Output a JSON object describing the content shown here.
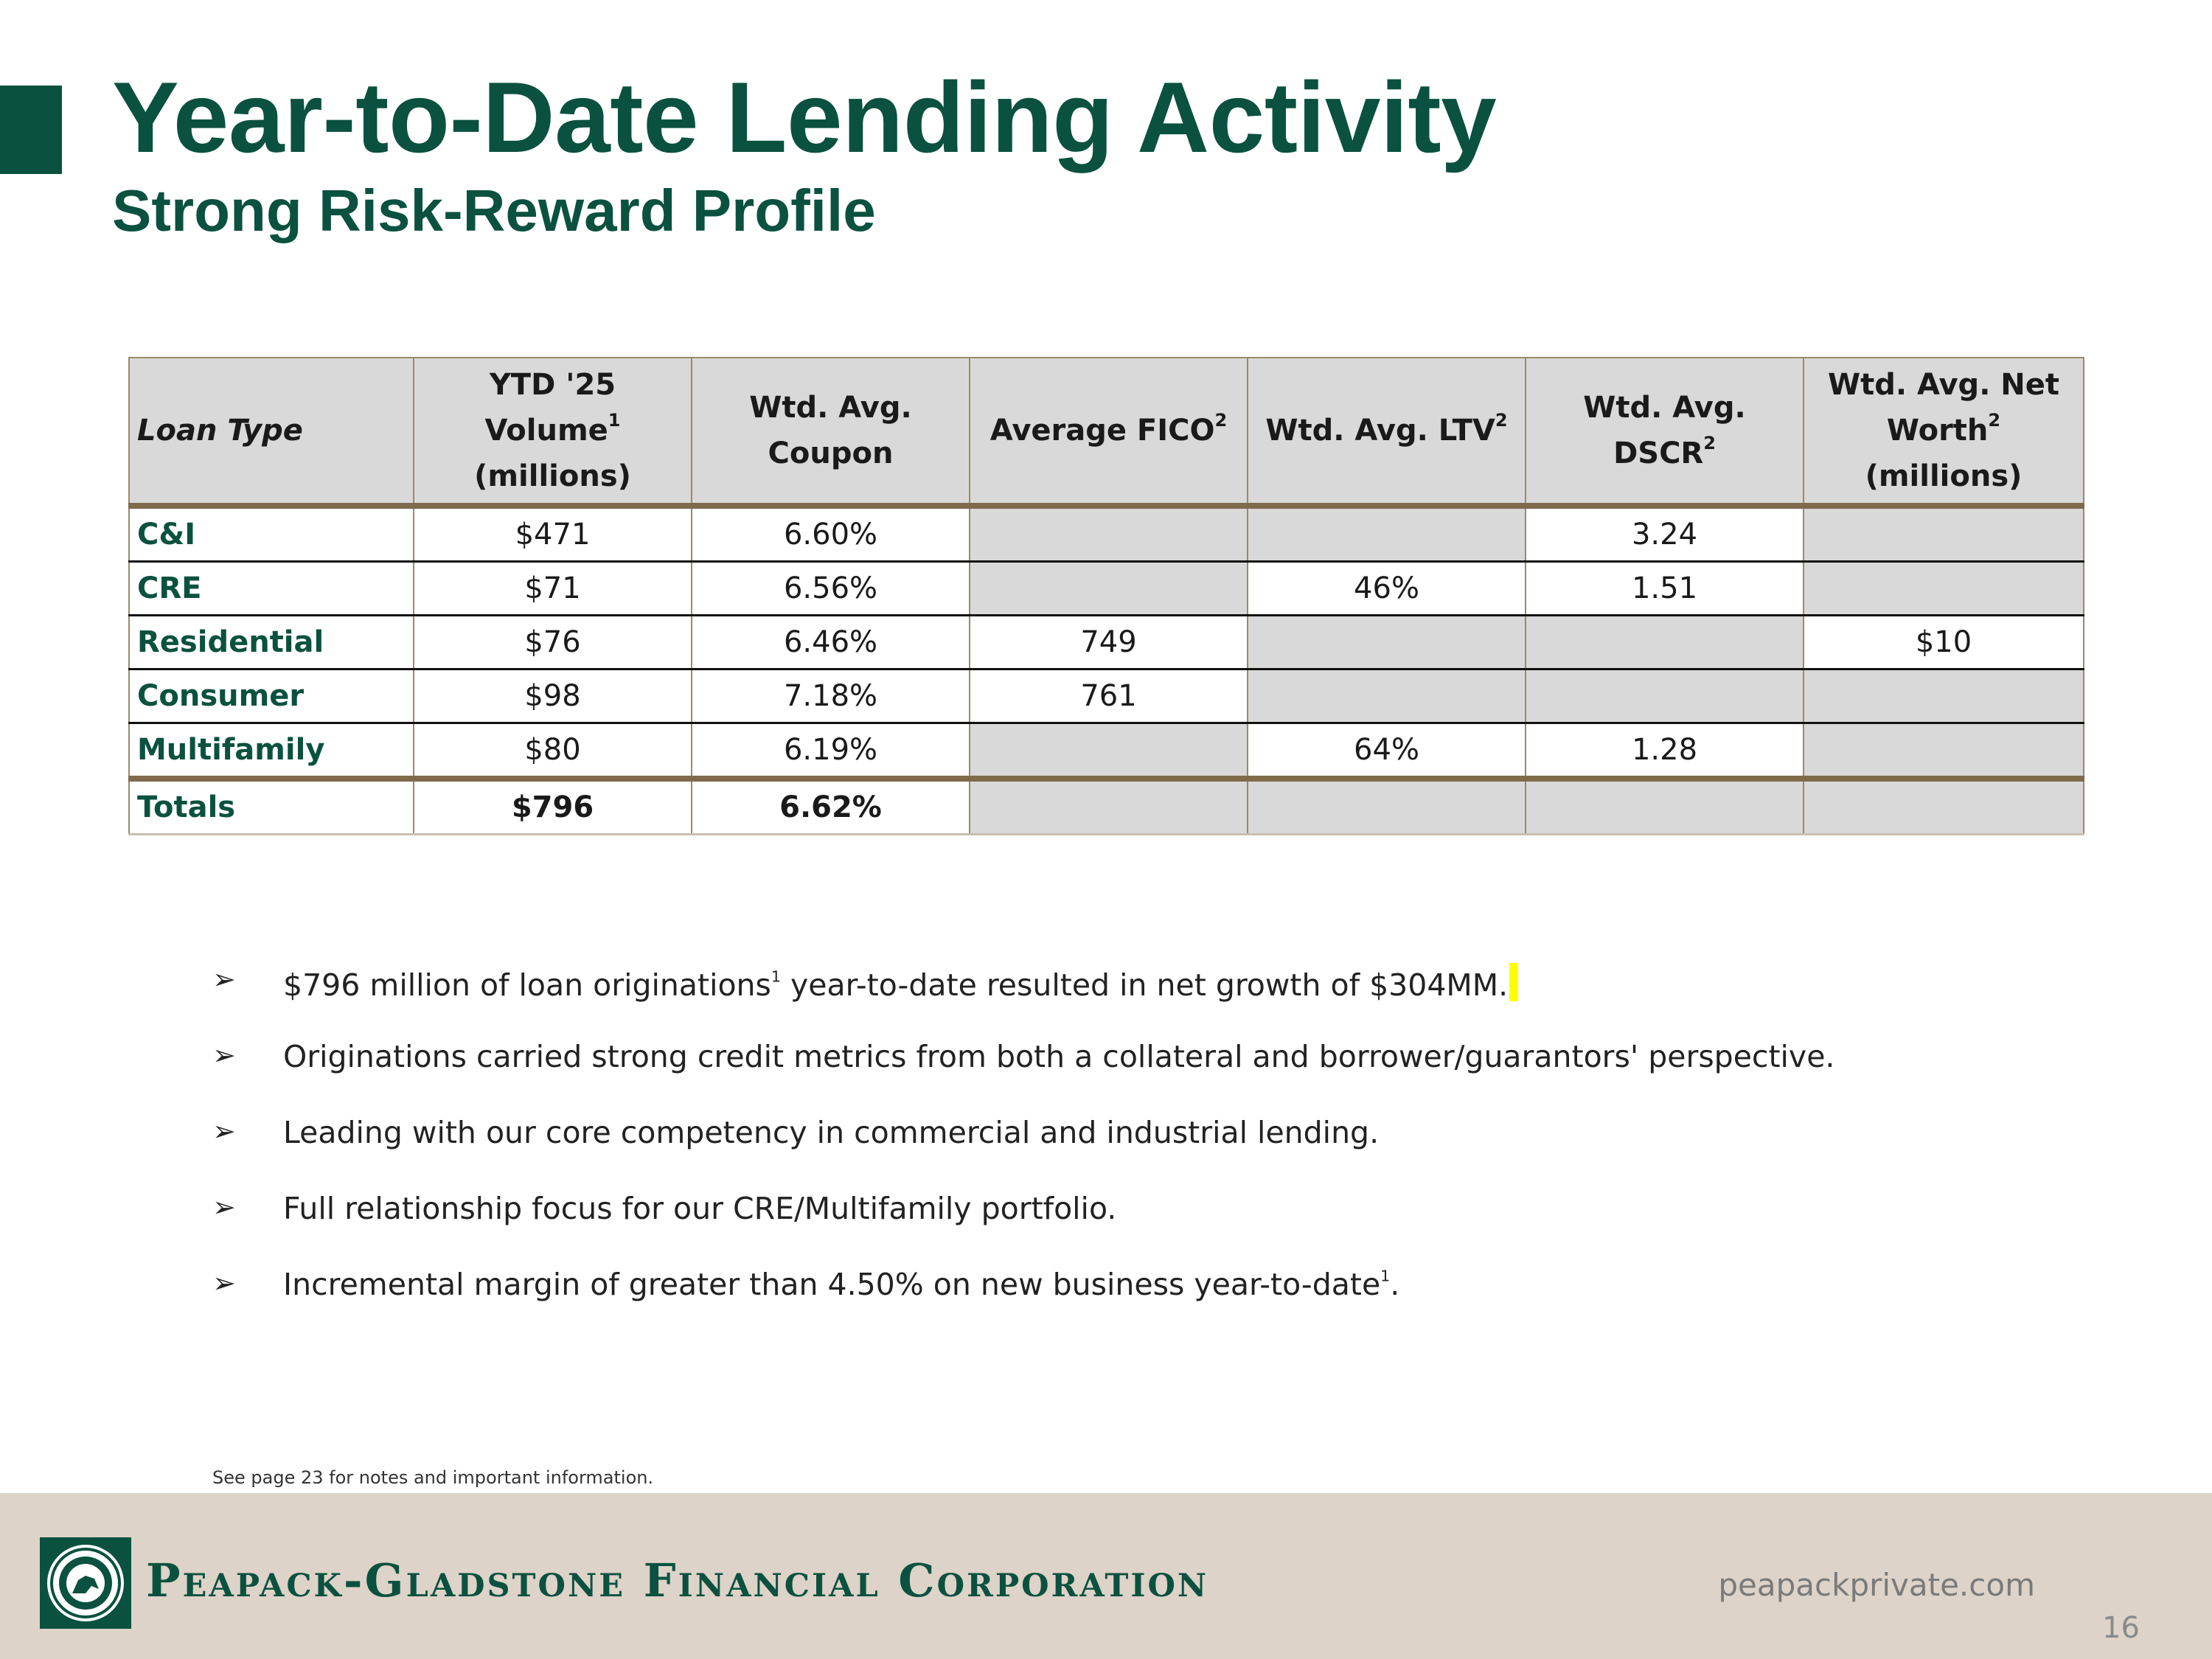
{
  "header": {
    "title": "Year-to-Date Lending Activity",
    "subtitle": "Strong Risk-Reward Profile"
  },
  "table": {
    "columns": [
      {
        "label": "Loan Type"
      },
      {
        "label_a": "YTD '25 Volume",
        "sup": "1",
        "label_b": "(millions)"
      },
      {
        "label_a": "Wtd. Avg.",
        "label_b": "Coupon"
      },
      {
        "label": "Average FICO",
        "sup": "2"
      },
      {
        "label": "Wtd. Avg. LTV",
        "sup": "2"
      },
      {
        "label": "Wtd. Avg. DSCR",
        "sup": "2"
      },
      {
        "label_a": "Wtd. Avg. Net",
        "label_b_1": "Worth",
        "sup": "2",
        "label_b_2": " (millions)"
      }
    ],
    "rows": [
      {
        "loan_type": "C&I",
        "volume": "$471",
        "coupon": "6.60%",
        "fico": "",
        "ltv": "",
        "dscr": "3.24",
        "net_worth": ""
      },
      {
        "loan_type": "CRE",
        "volume": "$71",
        "coupon": "6.56%",
        "fico": "",
        "ltv": "46%",
        "dscr": "1.51",
        "net_worth": ""
      },
      {
        "loan_type": "Residential",
        "volume": "$76",
        "coupon": "6.46%",
        "fico": "749",
        "ltv": "",
        "dscr": "",
        "net_worth": "$10"
      },
      {
        "loan_type": "Consumer",
        "volume": "$98",
        "coupon": "7.18%",
        "fico": "761",
        "ltv": "",
        "dscr": "",
        "net_worth": ""
      },
      {
        "loan_type": "Multifamily",
        "volume": "$80",
        "coupon": "6.19%",
        "fico": "",
        "ltv": "64%",
        "dscr": "1.28",
        "net_worth": ""
      }
    ],
    "totals": {
      "label": "Totals",
      "volume": "$796",
      "coupon": "6.62%"
    }
  },
  "bullets": {
    "marker": "➢",
    "b1_a": "$796 million of loan originations",
    "b1_sup": "1",
    "b1_b": " year-to-date resulted in net growth of $304MM.",
    "b2": "Originations carried strong credit metrics from both a collateral and borrower/guarantors' perspective.",
    "b3": "Leading with our core competency in commercial and industrial lending.",
    "b4": "Full relationship focus for our CRE/Multifamily portfolio.",
    "b5_a": "Incremental margin of greater than 4.50% on new business year-to-date",
    "b5_sup": "1",
    "b5_b": "."
  },
  "footnote": "See page 23 for notes and important information.",
  "footer": {
    "company": "Peapack-Gladstone Financial Corporation",
    "website": "peapackprivate.com",
    "page_number": "16"
  },
  "colors": {
    "brand_green": "#0b5140",
    "table_header_bg": "#d9d9d9",
    "table_rule": "#7f6a4c",
    "footer_bg": "#ddd3c8",
    "highlight": "#ffff00"
  },
  "icons": {
    "logo": "company-seal-logo",
    "bullet": "arrowhead-bullet-icon"
  }
}
